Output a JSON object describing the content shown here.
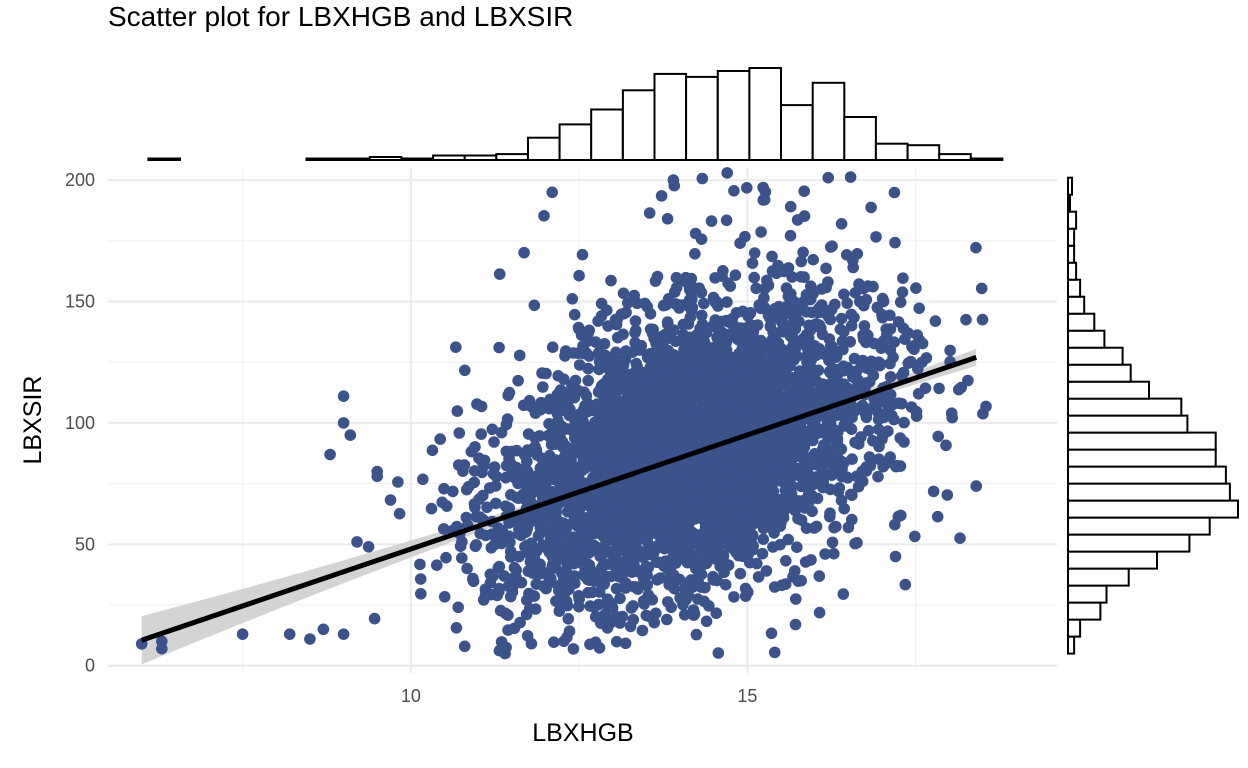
{
  "chart_data": {
    "type": "scatter",
    "title": "Scatter plot for LBXHGB and LBXSIR",
    "xlabel": "LBXHGB",
    "ylabel": "LBXSIR",
    "xlim": [
      5.5,
      19.6
    ],
    "ylim": [
      -3,
      205
    ],
    "x_ticks": [
      10,
      15
    ],
    "y_ticks": [
      0,
      50,
      100,
      150,
      200
    ],
    "grid": true,
    "point_color": "#3B528B",
    "fit_line": {
      "x": [
        6,
        18.4
      ],
      "y": [
        10.5,
        127
      ],
      "color": "#000000",
      "ci_color": "#cccccc"
    },
    "points": {
      "n_approx": 5000,
      "cluster_center": {
        "x": 14.2,
        "y": 80
      },
      "x_range": [
        6.0,
        18.7
      ],
      "y_range": [
        5,
        203
      ]
    },
    "marginal_x_histogram": {
      "bin_start": 6.1,
      "bin_width": 0.47,
      "counts": [
        1,
        0,
        0,
        0,
        0,
        1,
        1,
        2,
        1,
        3,
        3,
        4,
        15,
        24,
        34,
        47,
        58,
        56,
        60,
        62,
        37,
        52,
        29,
        11,
        10,
        4,
        1,
        0,
        0
      ]
    },
    "marginal_y_histogram": {
      "bin_start": 5,
      "bin_width": 7,
      "counts": [
        3,
        6,
        16,
        19,
        30,
        44,
        60,
        70,
        84,
        80,
        78,
        73,
        73,
        59,
        56,
        40,
        31,
        27,
        18,
        13,
        8,
        6,
        4,
        3,
        3,
        4,
        1,
        2
      ]
    }
  }
}
